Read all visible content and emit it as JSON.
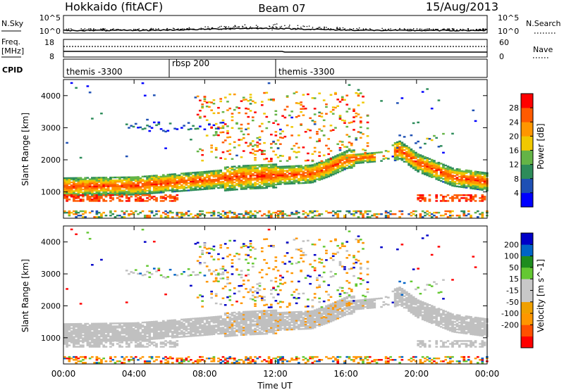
{
  "header": {
    "station": "Hokkaido (fitACF)",
    "beam": "Beam 07",
    "date": "15/Aug/2013"
  },
  "nsky_panel": {
    "left_label": "N.Sky",
    "right_label": "N.Search",
    "left_ticks": [
      "10^5",
      "10^0"
    ],
    "right_ticks": [
      "10^5",
      "10^0"
    ]
  },
  "freq_panel": {
    "left_label_1": "Freq.",
    "left_label_2": "[MHz]",
    "right_label": "Nave",
    "left_ticks": [
      "18",
      "8"
    ],
    "right_ticks": [
      "60",
      "0"
    ]
  },
  "cpid_panel": {
    "label": "CPID",
    "segments": [
      "themis -3300",
      "rbsp 200",
      "themis -3300"
    ]
  },
  "colors": {
    "power_scale": [
      "#0000ff",
      "#1e50b4",
      "#2d8c5a",
      "#64b446",
      "#f0c800",
      "#ff9600",
      "#ff5a00",
      "#ff0000"
    ],
    "velocity_scale": [
      "#ff0000",
      "#ff5000",
      "#ff9600",
      "#f0a000",
      "#c8c8c8",
      "#c8c8c8",
      "#64c832",
      "#1e8c1e",
      "#0064c8",
      "#0000c8"
    ],
    "ground_scatter": "#c0c0c0"
  },
  "chart_data": [
    {
      "type": "heatmap",
      "title": "Power",
      "ylabel": "Slant Range [km]",
      "ylim": [
        180,
        4500
      ],
      "yticks": [
        "1000",
        "2000",
        "3000",
        "4000"
      ],
      "xlim": [
        "00:00",
        "24:00"
      ],
      "xticks": [
        "00:00",
        "04:00",
        "08:00",
        "12:00",
        "16:00",
        "20:00",
        "00:00"
      ],
      "colorbar": {
        "label": "Power [dB]",
        "ticks": [
          "4",
          "8",
          "12",
          "16",
          "20",
          "24",
          "28"
        ],
        "range": [
          0,
          32
        ]
      }
    },
    {
      "type": "heatmap",
      "title": "Velocity",
      "xlabel": "Time UT",
      "ylabel": "Slant Range [km]",
      "ylim": [
        180,
        4500
      ],
      "yticks": [
        "1000",
        "2000",
        "3000",
        "4000"
      ],
      "xlim": [
        "00:00",
        "24:00"
      ],
      "xticks": [
        "00:00",
        "04:00",
        "08:00",
        "12:00",
        "16:00",
        "20:00",
        "00:00"
      ],
      "colorbar": {
        "label": "Velocity [m s^-1]",
        "ticks": [
          "200",
          "100",
          "50",
          "15",
          "-15",
          "-50",
          "-100",
          "-200"
        ]
      }
    }
  ]
}
